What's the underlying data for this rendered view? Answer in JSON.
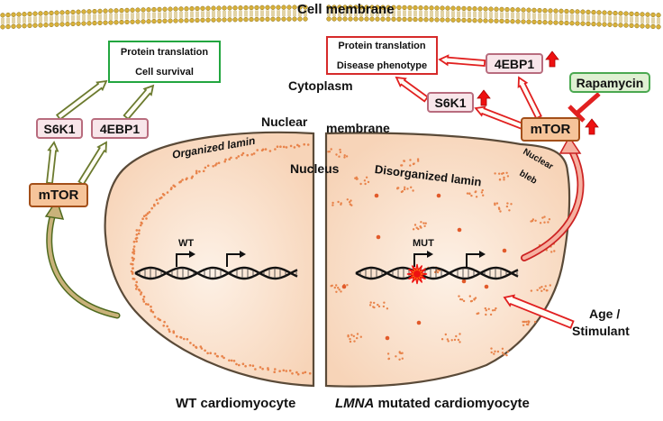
{
  "labels": {
    "cell_membrane": "Cell membrane",
    "cytoplasm": "Cytoplasm",
    "nuclear_membrane_left": "Nuclear",
    "nuclear_membrane_right": "membrane",
    "nucleus": "Nucleus",
    "organized_lamin": "Organized lamin",
    "disorganized_lamin": "Disorganized lamin",
    "nuclear_bleb_line1": "Nuclear",
    "nuclear_bleb_line2": "bleb",
    "wt_gene": "WT",
    "mut_gene": "MUT",
    "age_line1": "Age /",
    "age_line2": "Stimulant",
    "wt_cell": "WT cardiomyocyte",
    "lmna_italic": "LMNA",
    "mutated_cell": "mutated cardiomyocyte"
  },
  "left": {
    "outcome_line1": "Protein translation",
    "outcome_line2": "Cell survival",
    "s6k1": "S6K1",
    "4ebp1": "4EBP1",
    "mtor": "mTOR"
  },
  "right": {
    "outcome_line1": "Protein translation",
    "outcome_line2": "Disease phenotype",
    "s6k1": "S6K1",
    "4ebp1": "4EBP1",
    "mtor": "mTOR",
    "rapamycin": "Rapamycin"
  },
  "colors": {
    "membrane_gold": "#d8b13a",
    "cell_fill": "#fbe3cf",
    "lamin_dot": "#e8834a",
    "healthy_arrow": "#6b7a2e",
    "disease_arrow": "#e12020",
    "survival_border": "#22a63f",
    "disease_border": "#d62a2a",
    "mtor_fill": "#f6c49a",
    "kinase_fill": "#f8e6ea",
    "rapamycin_fill": "#dff0d2"
  }
}
